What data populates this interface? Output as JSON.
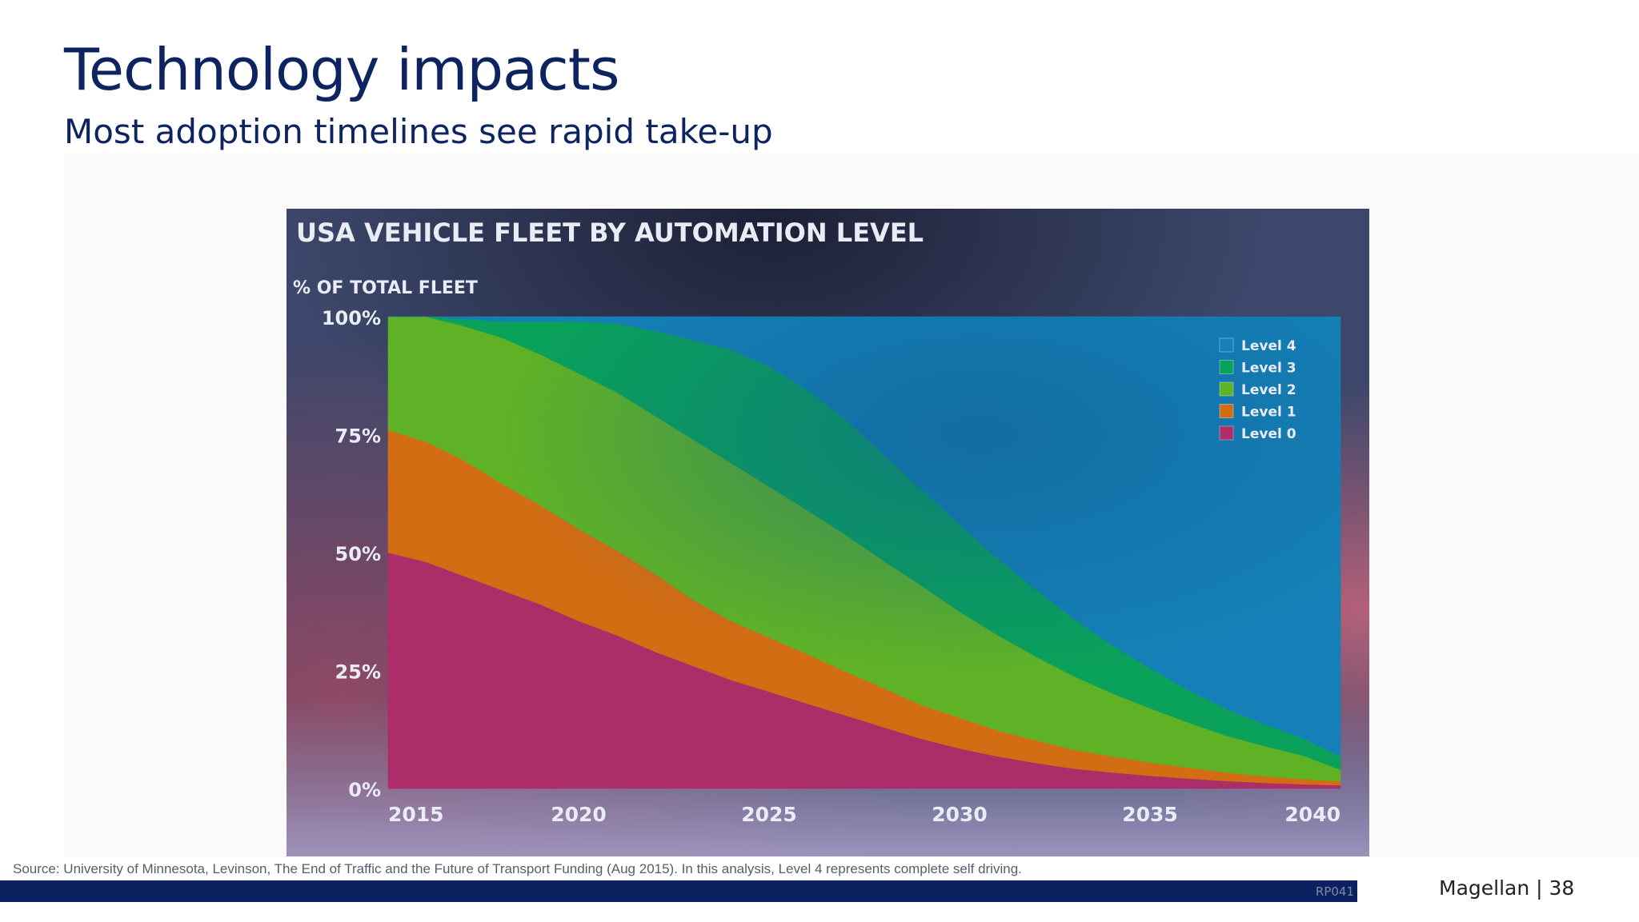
{
  "slide": {
    "title": "Technology impacts",
    "subtitle": "Most adoption timelines see rapid take-up",
    "source": "Source: University of Minnesota, Levinson, The End of Traffic and the Future of Transport Funding (Aug 2015). In this analysis, Level 4 represents complete self driving.",
    "footer_code": "RP041",
    "footer_brand": "Magellan | 38"
  },
  "chart_data": {
    "type": "area",
    "stacked": true,
    "title": "USA VEHICLE FLEET BY AUTOMATION LEVEL",
    "ylabel": "% OF TOTAL FLEET",
    "xlim": [
      2015,
      2040
    ],
    "ylim": [
      0,
      100
    ],
    "yticks": [
      "0%",
      "25%",
      "50%",
      "75%",
      "100%"
    ],
    "xticks": [
      "2015",
      "2020",
      "2025",
      "2030",
      "2035",
      "2040"
    ],
    "x": [
      2015,
      2016,
      2017,
      2018,
      2019,
      2020,
      2021,
      2022,
      2023,
      2024,
      2025,
      2026,
      2027,
      2028,
      2029,
      2030,
      2031,
      2032,
      2033,
      2034,
      2035,
      2036,
      2037,
      2038,
      2039,
      2040
    ],
    "legend_position": "top-right",
    "series": [
      {
        "name": "Level 0",
        "color": "#ad2d68",
        "values": [
          50,
          48,
          45,
          42,
          39,
          35.5,
          32.5,
          29,
          26,
          23,
          20.5,
          18,
          15.5,
          13,
          10.5,
          8.5,
          6.8,
          5.4,
          4.2,
          3.4,
          2.7,
          2.1,
          1.6,
          1.2,
          0.9,
          0.7
        ]
      },
      {
        "name": "Level 1",
        "color": "#d36d13",
        "values": [
          26,
          25.5,
          24.5,
          22.5,
          21,
          19.5,
          18,
          16.5,
          14,
          12.5,
          11.5,
          10.5,
          9.3,
          8.3,
          7.2,
          6.5,
          5.5,
          4.8,
          4.0,
          3.4,
          2.8,
          2.3,
          1.8,
          1.4,
          1.1,
          0.8
        ]
      },
      {
        "name": "Level 2",
        "color": "#5fb226",
        "values": [
          24,
          26.5,
          28.5,
          31,
          32,
          33,
          33.5,
          33.5,
          34,
          33.5,
          32,
          30.5,
          29,
          27,
          25.3,
          22.5,
          20.2,
          17.8,
          15.6,
          13.4,
          11.5,
          9.6,
          7.8,
          6.4,
          5.0,
          2.5
        ]
      },
      {
        "name": "Level 3",
        "color": "#0aa15a",
        "values": [
          0,
          0,
          1.5,
          3.5,
          7,
          11,
          14.5,
          18,
          21,
          24,
          25.5,
          25.5,
          24.5,
          22.5,
          20.5,
          18.5,
          16.3,
          14.2,
          12.2,
          10.2,
          8.5,
          6.9,
          5.7,
          4.6,
          3.7,
          2.8
        ]
      },
      {
        "name": "Level 4",
        "color": "#1580b7",
        "values": [
          0,
          0,
          0.5,
          1,
          1,
          1,
          1.5,
          3,
          5,
          7,
          10.5,
          15.5,
          21.7,
          29.2,
          36.5,
          44,
          51.2,
          57.8,
          64,
          69.6,
          74.5,
          79.1,
          83.1,
          86.4,
          89.3,
          93.2
        ]
      }
    ],
    "colors": {
      "panel_background": "#3a4568",
      "plot_background": "#1a7fb5",
      "text": "#e9ecf4",
      "title_color": "#0e2461"
    }
  }
}
